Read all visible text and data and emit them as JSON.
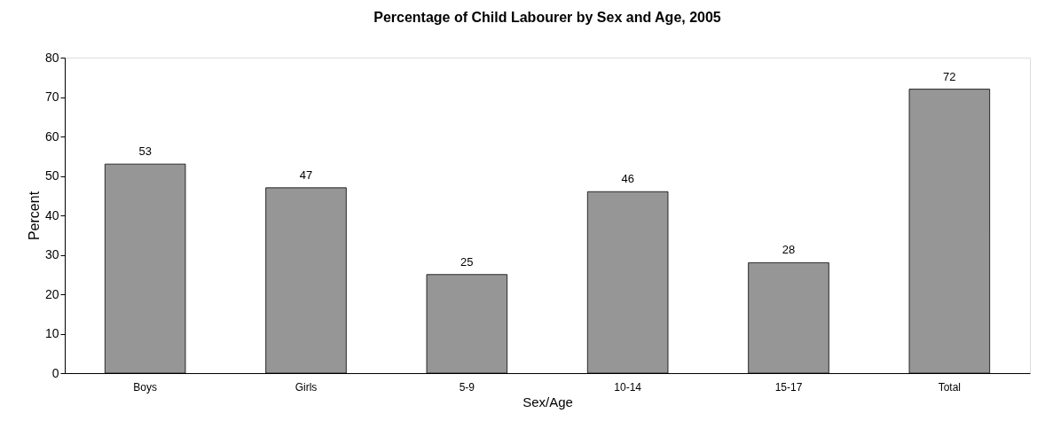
{
  "chart_data": {
    "type": "bar",
    "title": "Percentage of Child Labourer by Sex and Age, 2005",
    "xlabel": "Sex/Age",
    "ylabel": "Percent",
    "categories": [
      "Boys",
      "Girls",
      "5-9",
      "10-14",
      "15-17",
      "Total"
    ],
    "values": [
      53,
      47,
      25,
      46,
      28,
      72
    ],
    "color": "#969696",
    "ylim": [
      0,
      80
    ],
    "yticks": [
      0,
      10,
      20,
      30,
      40,
      50,
      60,
      70,
      80
    ],
    "grid": false,
    "data_labels": true
  }
}
